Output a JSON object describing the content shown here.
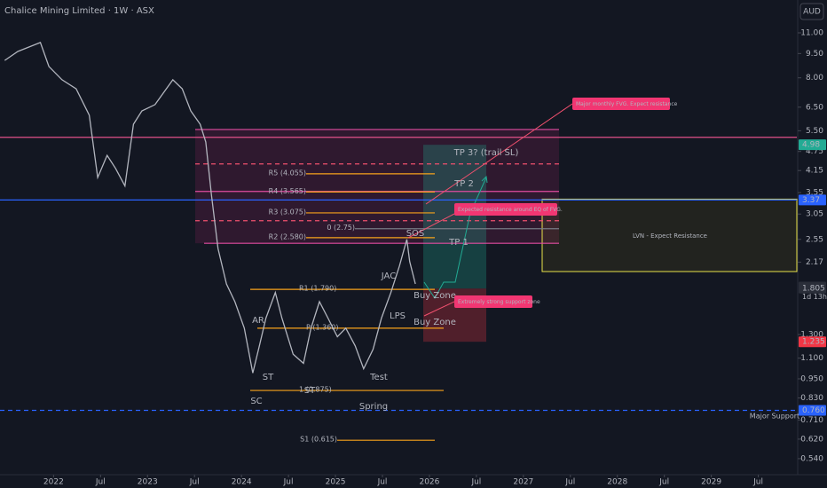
{
  "chart_data": {
    "type": "line",
    "title": "Chalice Mining Limited · 1W · ASX",
    "currency": "AUD",
    "log_scale": true,
    "x": [
      2021.48,
      2021.62,
      2021.86,
      2021.95,
      2022.09,
      2022.24,
      2022.38,
      2022.47,
      2022.57,
      2022.66,
      2022.76,
      2022.85,
      2022.94,
      2023.08,
      2023.27,
      2023.37,
      2023.46,
      2023.56,
      2023.62,
      2023.68,
      2023.75,
      2023.84,
      2023.93,
      2024.03,
      2024.12,
      2024.19,
      2024.26,
      2024.36,
      2024.43,
      2024.55,
      2024.66,
      2024.74,
      2024.83,
      2024.92,
      2025.02,
      2025.11,
      2025.21,
      2025.3,
      2025.4,
      2025.49,
      2025.59,
      2025.68,
      2025.76,
      2025.79,
      2025.85
    ],
    "values": [
      9.05,
      9.64,
      10.27,
      8.67,
      7.89,
      7.4,
      6.14,
      3.95,
      4.62,
      4.21,
      3.72,
      5.76,
      6.33,
      6.62,
      7.89,
      7.4,
      6.33,
      5.76,
      5.08,
      3.49,
      2.39,
      1.86,
      1.64,
      1.36,
      0.99,
      1.2,
      1.46,
      1.75,
      1.46,
      1.13,
      1.06,
      1.36,
      1.64,
      1.46,
      1.28,
      1.36,
      1.2,
      1.02,
      1.17,
      1.46,
      1.75,
      2.11,
      2.55,
      2.18,
      1.86
    ],
    "color": "#b2b5be",
    "xlim": [
      2021.43,
      2029.91
    ],
    "xticks": [
      2022,
      {
        "value": 2022.5,
        "label": "Jul"
      },
      2023,
      {
        "value": 2023.5,
        "label": "Jul"
      },
      2024,
      {
        "value": 2024.5,
        "label": "Jul"
      },
      2025,
      {
        "value": 2025.5,
        "label": "Jul"
      },
      2026,
      {
        "value": 2026.5,
        "label": "Jul"
      },
      2027,
      {
        "value": 2027.5,
        "label": "Jul"
      },
      2028,
      {
        "value": 2028.5,
        "label": "Jul"
      },
      2029,
      {
        "value": 2029.5,
        "label": "Jul"
      }
    ],
    "ylim": [
      0.482,
      11.64
    ],
    "yticks": [
      {
        "value": 11,
        "label": "11.00"
      },
      {
        "value": 9.5,
        "label": "9.50"
      },
      {
        "value": 8,
        "label": "8.00"
      },
      {
        "value": 6.5,
        "label": "6.50"
      },
      {
        "value": 5.5,
        "label": "5.50"
      },
      4.75,
      4.15,
      3.55,
      3.05,
      2.55,
      2.17,
      {
        "value": 1.3,
        "label": "1.300"
      },
      {
        "value": 1.1,
        "label": "1.100"
      },
      {
        "value": 0.95,
        "label": "0.950"
      },
      {
        "value": 0.83,
        "label": "0.830"
      },
      {
        "value": 0.71,
        "label": "0.710"
      },
      {
        "value": 0.62,
        "label": "0.620"
      },
      {
        "value": 0.54,
        "label": "0.540"
      }
    ],
    "price_badges": [
      {
        "value": 4.98,
        "label": "4.98",
        "color": "#22ab94"
      },
      {
        "value": 3.37,
        "label": "3.37",
        "color": "#2962ff"
      },
      {
        "value": 1.82,
        "label": "1.820",
        "color": "#2a2e39"
      },
      {
        "value": 1.805,
        "label": "1.805",
        "color": "#2a2e39"
      },
      {
        "value": 1.235,
        "label": "1.235",
        "color": "#f23645"
      },
      {
        "value": 0.76,
        "label": "0.760",
        "color": "#2962ff"
      }
    ],
    "countdown": "1d 13h",
    "levels": [
      {
        "label": "R5 (4.055)",
        "value": 4.055
      },
      {
        "label": "R4 (3.565)",
        "value": 3.565
      },
      {
        "label": "R3 (3.075)",
        "value": 3.075
      },
      {
        "label": "R2 (2.580)",
        "value": 2.58
      },
      {
        "label": "R1 (1.790)",
        "value": 1.79
      },
      {
        "label": "P (1.360)",
        "value": 1.36
      },
      {
        "label": "1 (0.875)",
        "value": 0.875
      },
      {
        "label": "S1 (0.615)",
        "value": 0.615
      },
      {
        "label": "0 (2.75)",
        "value": 2.75
      }
    ],
    "level_color": "#f7a21b",
    "lines": [
      {
        "value": 5.55,
        "color": "#e04ca0",
        "style": "solid"
      },
      {
        "value": 5.25,
        "color": "#e0508a",
        "style": "solid"
      },
      {
        "value": 4.35,
        "color": "#f0506e",
        "style": "dashed"
      },
      {
        "value": 3.58,
        "color": "#e04ca0",
        "style": "solid"
      },
      {
        "value": 3.37,
        "color": "#2962ff",
        "style": "solid"
      },
      {
        "value": 2.91,
        "color": "#f0506e",
        "style": "dashed"
      },
      {
        "value": 2.48,
        "color": "#e04ca0",
        "style": "solid"
      },
      {
        "value": 0.76,
        "color": "#2962ff",
        "style": "dashed"
      }
    ],
    "zones": [
      {
        "top": 5.55,
        "bottom": 2.48,
        "color": "rgba(180,40,110,0.18)",
        "stroke": "none"
      },
      {
        "top": 3.39,
        "bottom": 2.03,
        "color": "rgba(120,110,20,0.15)",
        "stroke": "#e8e34a"
      },
      {
        "top": 4.98,
        "bottom": 1.8,
        "color": "rgba(34,171,148,0.28)",
        "stroke": "none"
      },
      {
        "top": 1.8,
        "bottom": 1.235,
        "color": "rgba(242,54,69,0.28)",
        "stroke": "none"
      }
    ],
    "annotations": [
      {
        "text": "TP 3? (trail SL)",
        "color": "#f06080"
      },
      {
        "text": "TP 2",
        "color": "#f06080"
      },
      {
        "text": "TP 1",
        "color": "#f06080"
      },
      {
        "text": "SOS",
        "color": "#f06080"
      },
      {
        "text": "JAC",
        "color": "#f06080"
      },
      {
        "text": "LPS",
        "color": "#f06080"
      },
      {
        "text": "Buy Zone",
        "color": "#8bc34a"
      },
      {
        "text": "Buy Zone",
        "color": "#8bc34a"
      },
      {
        "text": "AR",
        "color": "#f06080"
      },
      {
        "text": "ST",
        "color": "#f06080"
      },
      {
        "text": "ST",
        "color": "#f06080"
      },
      {
        "text": "Test",
        "color": "#f06080"
      },
      {
        "text": "SC",
        "color": "#f06080"
      },
      {
        "text": "Spring",
        "color": "#f06080"
      },
      {
        "text": "LVN - Expect Resistance",
        "color": "#e8e34a"
      },
      {
        "text": "Major Support",
        "color": "#2962ff"
      }
    ],
    "callouts": [
      "Major monthly FVG. Expect resistance",
      "Expected resistance around EQ of FVG.",
      "Extremely strong support zone"
    ]
  }
}
